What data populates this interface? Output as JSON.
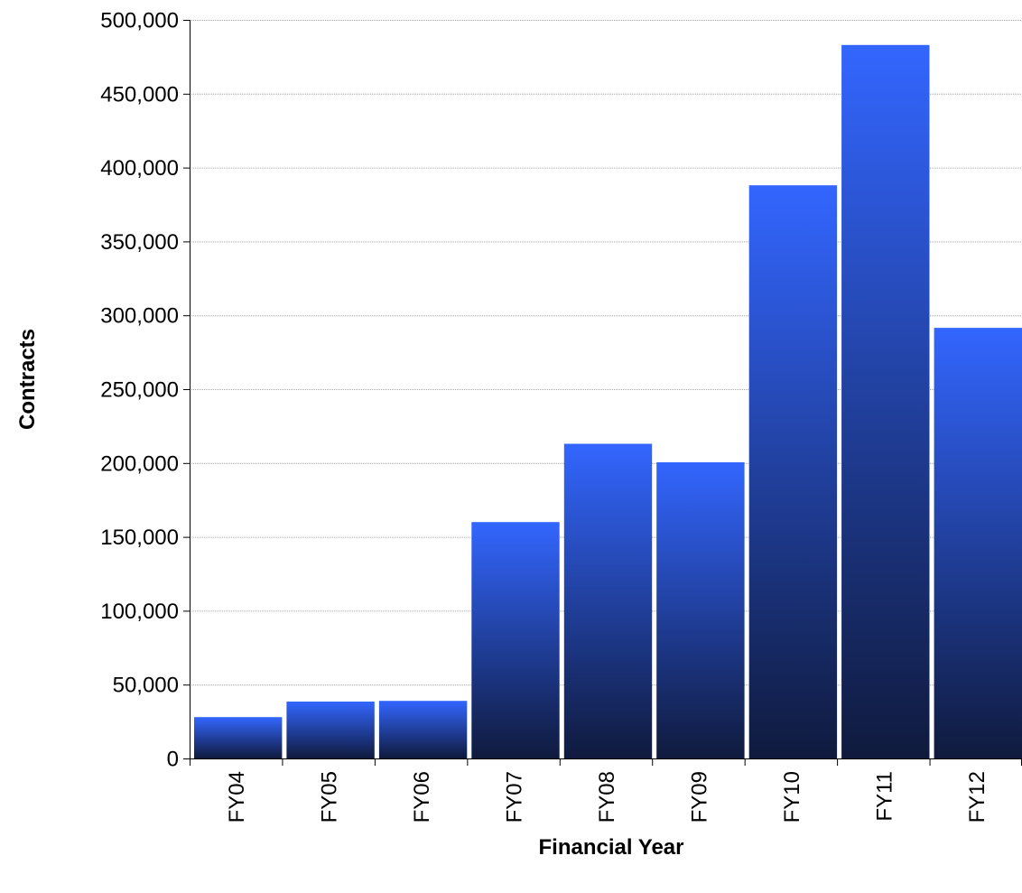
{
  "chart_data": {
    "type": "bar",
    "title": "",
    "xlabel": "Financial Year",
    "ylabel": "Contracts",
    "categories": [
      "FY04",
      "FY05",
      "FY06",
      "FY07",
      "FY08",
      "FY09",
      "FY10",
      "FY11",
      "FY12"
    ],
    "values": [
      28000,
      38500,
      39000,
      160000,
      213000,
      200500,
      388000,
      483000,
      291500
    ],
    "ylim": [
      0,
      500000
    ],
    "yticks": [
      0,
      50000,
      100000,
      150000,
      200000,
      250000,
      300000,
      350000,
      400000,
      450000,
      500000
    ],
    "ytick_labels": [
      "0",
      "50,000",
      "100,000",
      "150,000",
      "200,000",
      "250,000",
      "300,000",
      "350,000",
      "400,000",
      "450,000",
      "500,000"
    ],
    "grid": true,
    "legend": "none",
    "bar_color_top": "#3366ff",
    "bar_color_bottom": "#0f1a3d"
  }
}
